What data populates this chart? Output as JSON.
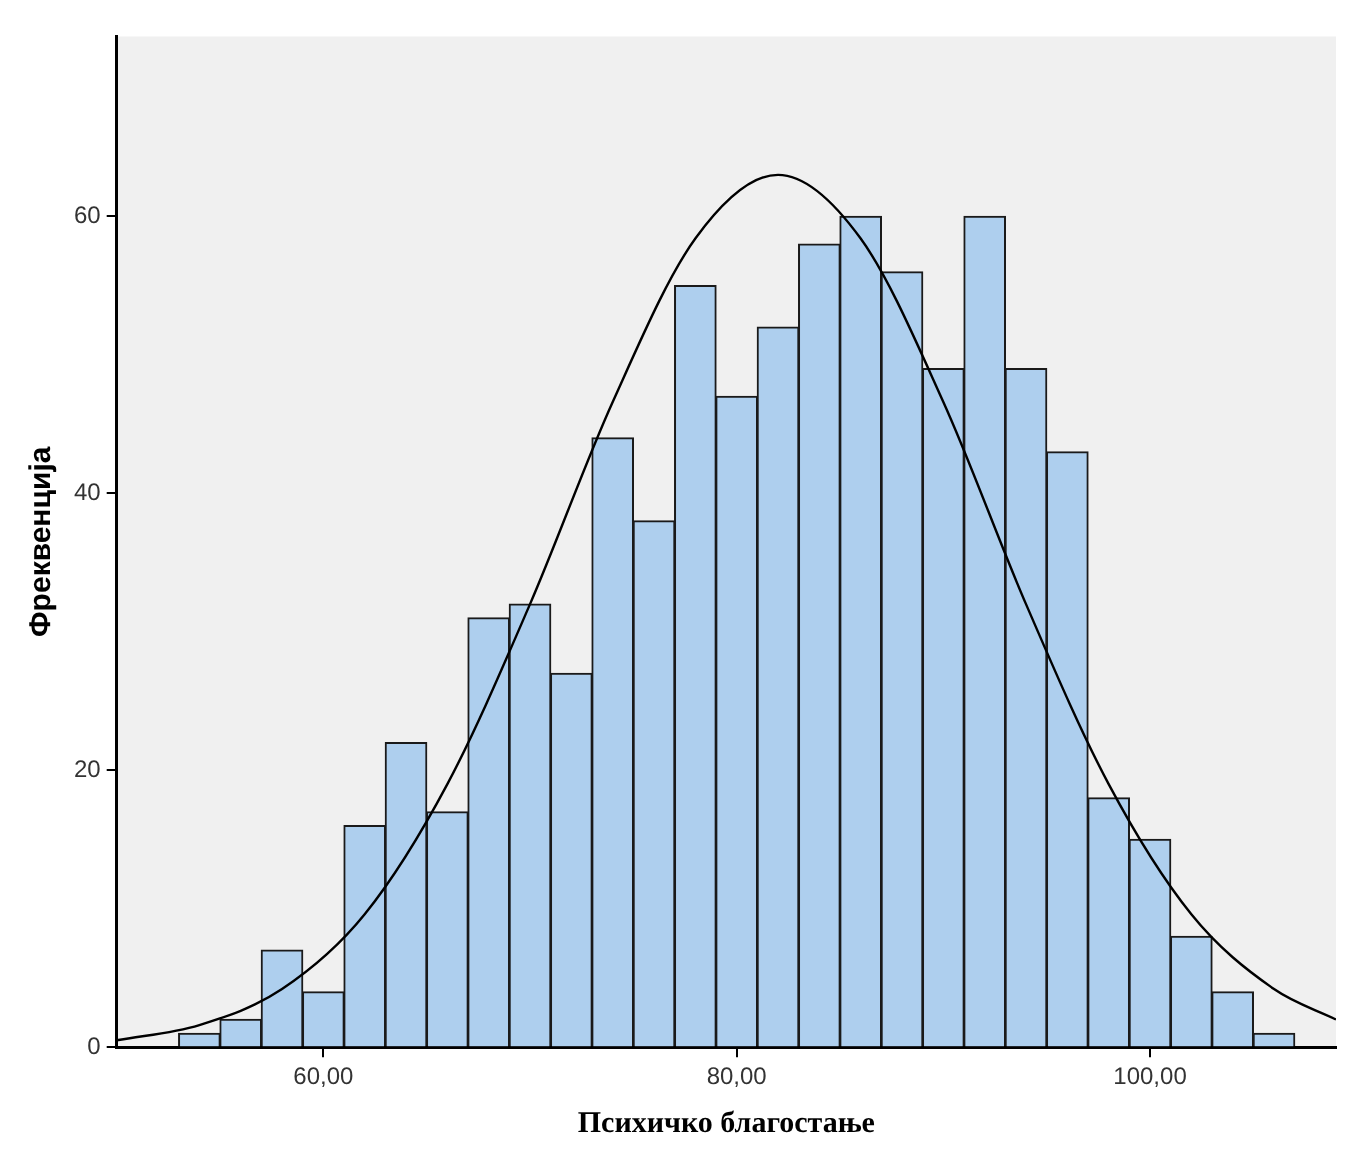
{
  "chart_data": {
    "type": "histogram",
    "xlabel": "Психичко благостање",
    "ylabel": "Фреквенција",
    "bins": [
      53,
      55,
      57,
      59,
      61,
      63,
      65,
      67,
      69,
      71,
      73,
      75,
      77,
      79,
      81,
      83,
      85,
      87,
      89,
      91,
      93,
      95,
      97,
      99,
      101,
      103,
      105,
      107
    ],
    "values": [
      1,
      2,
      7,
      4,
      16,
      22,
      17,
      31,
      32,
      27,
      44,
      38,
      55,
      47,
      52,
      58,
      60,
      56,
      49,
      60,
      49,
      43,
      18,
      15,
      8,
      4,
      1
    ],
    "color": "#aecfee",
    "series": [
      {
        "type": "line",
        "color": "#000000",
        "x": [
          50,
          54,
          58,
          62,
          66,
          70,
          74,
          78,
          82,
          86,
          90,
          94,
          98,
          102,
          106,
          109
        ],
        "values": [
          0.5,
          1.6,
          4.2,
          9.6,
          19,
          32,
          46.6,
          58.4,
          63,
          58.4,
          46.6,
          32,
          19,
          9.6,
          4.2,
          2
        ]
      }
    ],
    "xlim": [
      50,
      109
    ],
    "xticks": [
      {
        "value": 60,
        "label": "60,00"
      },
      {
        "value": 80,
        "label": "80,00"
      },
      {
        "value": 100,
        "label": "100,00"
      }
    ],
    "ylim": [
      0,
      73
    ],
    "yticks": [
      0,
      20,
      40,
      60
    ],
    "grid": false,
    "legend": false,
    "marker": "none",
    "line_style": "solid"
  }
}
